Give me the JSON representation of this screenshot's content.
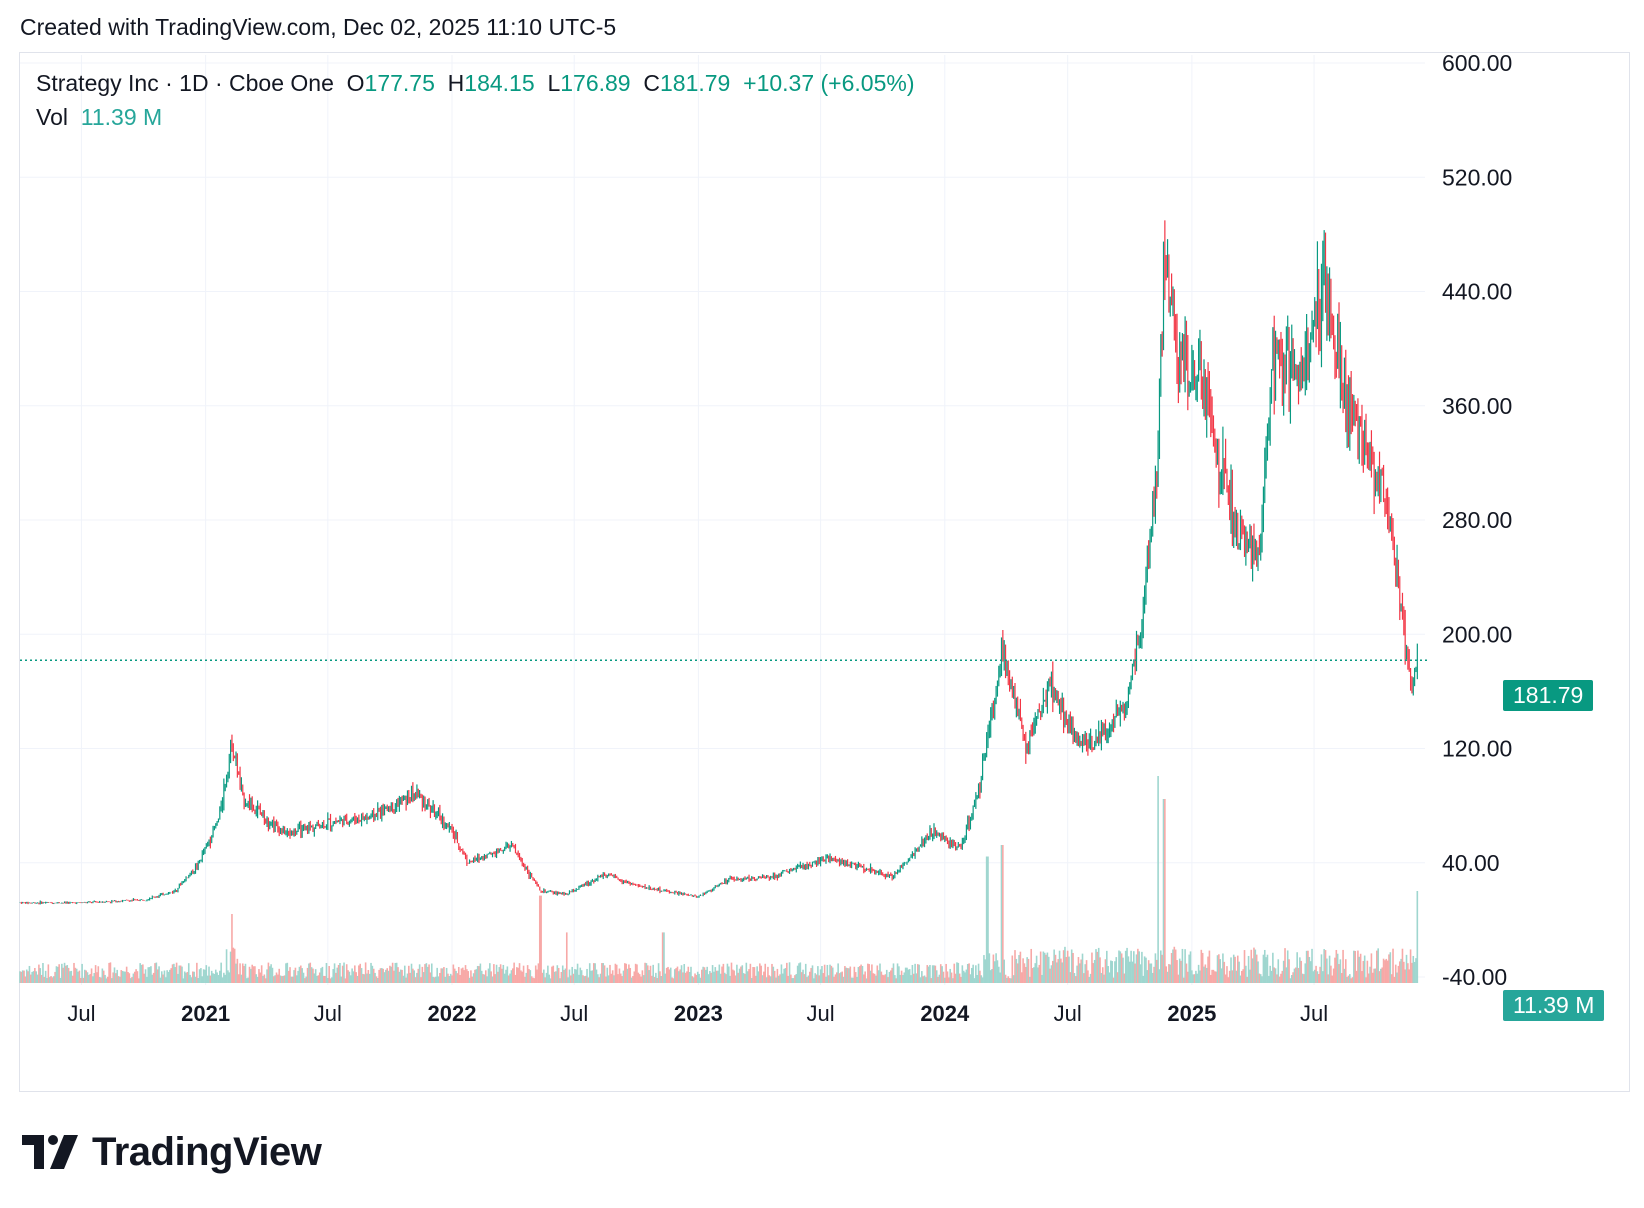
{
  "header": {
    "credit": "Created with TradingView.com, Dec 02, 2025 11:10 UTC-5"
  },
  "legend": {
    "symbol": "Strategy Inc · 1D · Cboe One",
    "o_label": "O",
    "o_value": "177.75",
    "h_label": "H",
    "h_value": "184.15",
    "l_label": "L",
    "l_value": "176.89",
    "c_label": "C",
    "c_value": "181.79",
    "change": "+10.37 (+6.05%)",
    "vol_label": "Vol",
    "vol_value": "11.39 M"
  },
  "price_tag": "181.79",
  "vol_tag": "11.39 M",
  "brand": {
    "name": "TradingView"
  },
  "colors": {
    "up": "#089981",
    "down": "#f23645",
    "vol_up": "#9fd6cf",
    "vol_down": "#f7a9a7",
    "grid": "#f0f3fa",
    "current_line": "#089981"
  },
  "chart_data": {
    "type": "candlestick",
    "symbol": "Strategy Inc",
    "interval": "1D",
    "ylim": [
      -40,
      600
    ],
    "y_ticks": [
      "600.00",
      "520.00",
      "440.00",
      "360.00",
      "280.00",
      "200.00",
      "120.00",
      "40.00",
      "-40.00"
    ],
    "x_ticks": [
      {
        "label": "Jul",
        "bold": false,
        "date": "2020-07-01"
      },
      {
        "label": "2021",
        "bold": true,
        "date": "2021-01-01"
      },
      {
        "label": "Jul",
        "bold": false,
        "date": "2021-07-01"
      },
      {
        "label": "2022",
        "bold": true,
        "date": "2022-01-01"
      },
      {
        "label": "Jul",
        "bold": false,
        "date": "2022-07-01"
      },
      {
        "label": "2023",
        "bold": true,
        "date": "2023-01-01"
      },
      {
        "label": "Jul",
        "bold": false,
        "date": "2023-07-01"
      },
      {
        "label": "2024",
        "bold": true,
        "date": "2024-01-01"
      },
      {
        "label": "Jul",
        "bold": false,
        "date": "2024-07-01"
      },
      {
        "label": "2025",
        "bold": true,
        "date": "2025-01-01"
      },
      {
        "label": "Jul",
        "bold": false,
        "date": "2025-07-01"
      }
    ],
    "date_range": [
      "2020-04-01",
      "2025-12-02"
    ],
    "current_price": 181.79,
    "price_path": [
      [
        "2020-04-01",
        12
      ],
      [
        "2020-07-01",
        12
      ],
      [
        "2020-10-01",
        14
      ],
      [
        "2020-11-15",
        20
      ],
      [
        "2020-12-20",
        38
      ],
      [
        "2021-01-20",
        70
      ],
      [
        "2021-02-09",
        125
      ],
      [
        "2021-02-25",
        85
      ],
      [
        "2021-05-01",
        60
      ],
      [
        "2021-07-01",
        68
      ],
      [
        "2021-09-01",
        72
      ],
      [
        "2021-11-10",
        88
      ],
      [
        "2022-01-01",
        62
      ],
      [
        "2022-01-25",
        40
      ],
      [
        "2022-03-30",
        52
      ],
      [
        "2022-05-12",
        20
      ],
      [
        "2022-06-20",
        18
      ],
      [
        "2022-08-15",
        32
      ],
      [
        "2022-10-01",
        24
      ],
      [
        "2022-12-30",
        16
      ],
      [
        "2023-02-15",
        28
      ],
      [
        "2023-04-15",
        30
      ],
      [
        "2023-07-15",
        43
      ],
      [
        "2023-10-15",
        30
      ],
      [
        "2023-12-15",
        62
      ],
      [
        "2024-01-25",
        50
      ],
      [
        "2024-02-20",
        90
      ],
      [
        "2024-03-26",
        190
      ],
      [
        "2024-05-01",
        120
      ],
      [
        "2024-06-05",
        165
      ],
      [
        "2024-07-10",
        130
      ],
      [
        "2024-08-05",
        120
      ],
      [
        "2024-09-25",
        150
      ],
      [
        "2024-10-20",
        215
      ],
      [
        "2024-11-11",
        320
      ],
      [
        "2024-11-21",
        475
      ],
      [
        "2024-12-10",
        390
      ],
      [
        "2025-01-20",
        370
      ],
      [
        "2025-03-05",
        270
      ],
      [
        "2025-04-08",
        250
      ],
      [
        "2025-05-01",
        395
      ],
      [
        "2025-06-15",
        380
      ],
      [
        "2025-07-16",
        450
      ],
      [
        "2025-08-20",
        360
      ],
      [
        "2025-09-20",
        330
      ],
      [
        "2025-10-20",
        290
      ],
      [
        "2025-11-21",
        165
      ],
      [
        "2025-12-02",
        181.79
      ]
    ],
    "volume_spikes_m": [
      [
        "2021-02-09",
        30
      ],
      [
        "2022-05-12",
        38
      ],
      [
        "2022-06-20",
        22
      ],
      [
        "2022-11-10",
        22
      ],
      [
        "2024-03-04",
        55
      ],
      [
        "2024-03-26",
        60
      ],
      [
        "2024-11-21",
        80
      ],
      [
        "2024-11-12",
        90
      ],
      [
        "2025-12-01",
        40
      ]
    ]
  }
}
